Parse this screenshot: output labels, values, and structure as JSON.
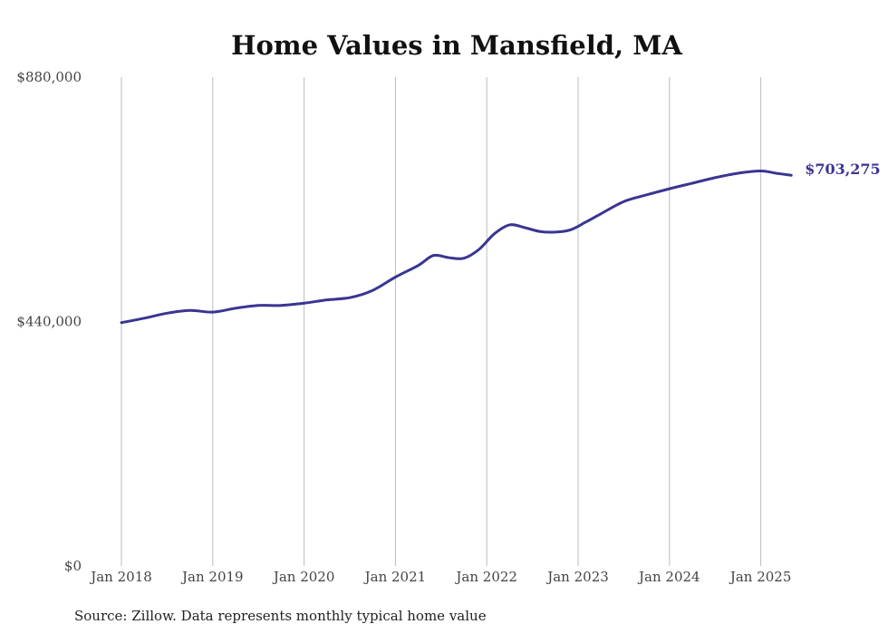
{
  "chart_data": {
    "type": "line",
    "title": "Home Values in Mansfield, MA",
    "xlabel": "",
    "ylabel": "",
    "ylim": [
      0,
      880000
    ],
    "y_ticks": [
      {
        "value": 0,
        "label": "$0"
      },
      {
        "value": 440000,
        "label": "$440,000"
      },
      {
        "value": 880000,
        "label": "$880,000"
      }
    ],
    "x_ticks": [
      {
        "value": "2018-01",
        "label": "Jan 2018"
      },
      {
        "value": "2019-01",
        "label": "Jan 2019"
      },
      {
        "value": "2020-01",
        "label": "Jan 2020"
      },
      {
        "value": "2021-01",
        "label": "Jan 2021"
      },
      {
        "value": "2022-01",
        "label": "Jan 2022"
      },
      {
        "value": "2023-01",
        "label": "Jan 2023"
      },
      {
        "value": "2024-01",
        "label": "Jan 2024"
      },
      {
        "value": "2025-01",
        "label": "Jan 2025"
      }
    ],
    "grid": {
      "vertical": true,
      "horizontal": false
    },
    "series": [
      {
        "color": "#3a3591",
        "x": [
          "2018-01",
          "2018-04",
          "2018-07",
          "2018-10",
          "2019-01",
          "2019-04",
          "2019-07",
          "2019-10",
          "2020-01",
          "2020-04",
          "2020-07",
          "2020-10",
          "2021-01",
          "2021-04",
          "2021-06",
          "2021-08",
          "2021-10",
          "2021-12",
          "2022-02",
          "2022-04",
          "2022-06",
          "2022-08",
          "2022-10",
          "2022-12",
          "2023-02",
          "2023-04",
          "2023-07",
          "2023-10",
          "2024-01",
          "2024-04",
          "2024-07",
          "2024-10",
          "2025-01",
          "2025-03",
          "2025-05"
        ],
        "values": [
          438000,
          446000,
          455000,
          460000,
          457000,
          464000,
          469000,
          469000,
          473000,
          479000,
          483000,
          496000,
          520000,
          541000,
          559000,
          555000,
          554000,
          570000,
          598000,
          614000,
          609000,
          602000,
          601000,
          605000,
          619000,
          634000,
          656000,
          668000,
          679000,
          689000,
          699000,
          707000,
          711000,
          707000,
          703275
        ]
      }
    ],
    "end_label": "$703,275"
  },
  "source_note": "Source: Zillow. Data represents monthly typical home value"
}
